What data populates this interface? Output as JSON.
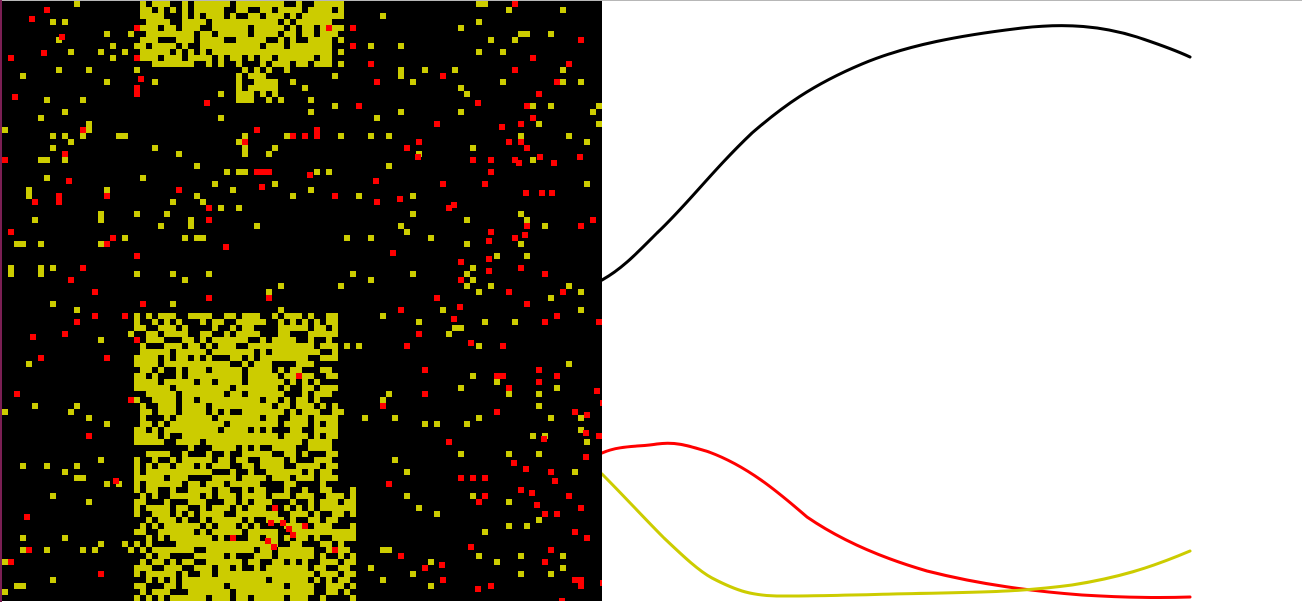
{
  "simulation": {
    "colors": {
      "background": "#000000",
      "vegetation": "#cccc00",
      "hotspot": "#ff0000",
      "graph_background": "#ffffff",
      "line_primary": "#000000",
      "line_secondary": "#ff0000",
      "line_tertiary": "#cccc00"
    }
  }
}
